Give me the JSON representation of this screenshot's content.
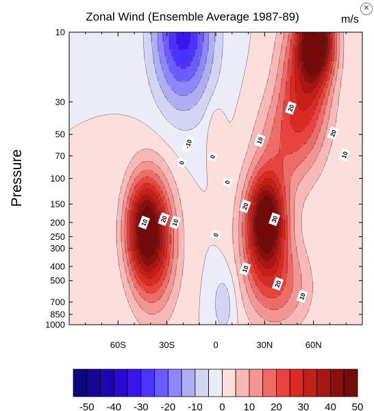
{
  "chart_data": {
    "type": "heatmap",
    "title": "Zonal Wind (Ensemble Average 1987-89)",
    "units": "m/s",
    "ylabel": "Pressure",
    "xlabel": "",
    "x_axis": {
      "range": [
        -90,
        90
      ],
      "ticks": [
        -60,
        -30,
        0,
        30,
        60
      ],
      "tick_labels": [
        "60S",
        "30S",
        "0",
        "30N",
        "60N"
      ]
    },
    "y_axis": {
      "scale": "log",
      "direction": "reversed",
      "range": [
        1000,
        10
      ],
      "ticks": [
        10,
        30,
        50,
        70,
        100,
        150,
        200,
        250,
        300,
        400,
        500,
        700,
        850,
        1000
      ],
      "tick_labels": [
        "10",
        "30",
        "50",
        "70",
        "100",
        "150",
        "200",
        "250",
        "300",
        "400",
        "500",
        "700",
        "850",
        "1000"
      ]
    },
    "contour_levels": [
      -50,
      -45,
      -40,
      -35,
      -30,
      -25,
      -20,
      -15,
      -10,
      -5,
      0,
      5,
      10,
      15,
      20,
      25,
      30,
      35,
      40,
      45,
      50
    ],
    "colorbar": {
      "tick_labels": [
        "-50",
        "-40",
        "-30",
        "-20",
        "-10",
        "0",
        "10",
        "20",
        "30",
        "40",
        "50"
      ],
      "colors": [
        "#0c0580",
        "#170499",
        "#1f06b3",
        "#2b0ad0",
        "#3a16ec",
        "#4d33ff",
        "#6b5cff",
        "#8d86ff",
        "#b0aef2",
        "#d3d3f4",
        "#ececf8",
        "#fcdedd",
        "#f7b8b6",
        "#f39591",
        "#ee6b66",
        "#e8433c",
        "#db2a22",
        "#c61e18",
        "#ab1612",
        "#8c0f0c",
        "#740a09"
      ]
    },
    "contour_labels": [
      {
        "lat": -44,
        "p": 200,
        "text": "10"
      },
      {
        "lat": -25,
        "p": 200,
        "text": "10"
      },
      {
        "lat": -32,
        "p": 190,
        "text": "20"
      },
      {
        "lat": -17,
        "p": 58,
        "text": "-10"
      },
      {
        "lat": -21,
        "p": 78,
        "text": "0"
      },
      {
        "lat": -2,
        "p": 71,
        "text": "0"
      },
      {
        "lat": 7,
        "p": 106,
        "text": "0"
      },
      {
        "lat": 0,
        "p": 243,
        "text": "0"
      },
      {
        "lat": 27,
        "p": 55,
        "text": "10"
      },
      {
        "lat": 18,
        "p": 155,
        "text": "20"
      },
      {
        "lat": 36,
        "p": 190,
        "text": "30"
      },
      {
        "lat": 18,
        "p": 415,
        "text": "10"
      },
      {
        "lat": 38,
        "p": 525,
        "text": "20"
      },
      {
        "lat": 53,
        "p": 640,
        "text": "10"
      },
      {
        "lat": 46,
        "p": 33,
        "text": "20"
      },
      {
        "lat": 72,
        "p": 49,
        "text": "20"
      },
      {
        "lat": 79,
        "p": 69,
        "text": "10"
      }
    ]
  }
}
